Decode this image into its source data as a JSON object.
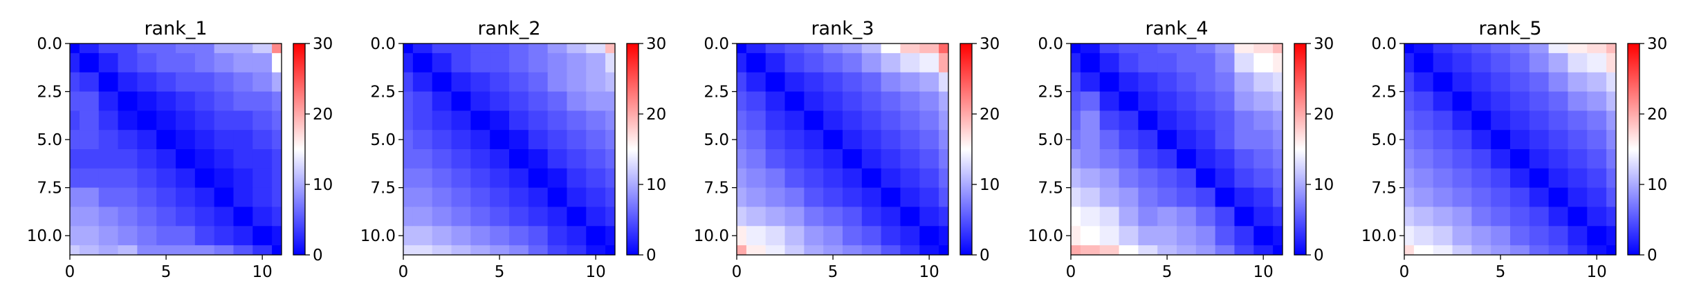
{
  "chart_data": [
    {
      "type": "heatmap",
      "title": "rank_1",
      "xlabel": "",
      "ylabel": "",
      "xlim": [
        0,
        11
      ],
      "ylim": [
        11,
        0
      ],
      "x_ticks": [
        "0",
        "5",
        "10"
      ],
      "y_ticks": [
        "0.0",
        "2.5",
        "5.0",
        "7.5",
        "10.0"
      ],
      "colorbar": {
        "range": [
          0,
          30
        ],
        "ticks": [
          "0",
          "10",
          "20",
          "30"
        ],
        "colormap": "bwr"
      },
      "values": [
        [
          0,
          2,
          4,
          4,
          6,
          6,
          7,
          7,
          10,
          10,
          12,
          22
        ],
        [
          2,
          0,
          2,
          4,
          5,
          6,
          6,
          7,
          8,
          9,
          9,
          15
        ],
        [
          4,
          3,
          0,
          2,
          3,
          4,
          5,
          5,
          6,
          7,
          8,
          10
        ],
        [
          5,
          5,
          2,
          0,
          1,
          2,
          3,
          4,
          5,
          6,
          6,
          7
        ],
        [
          4,
          5,
          3,
          1,
          0,
          1,
          2,
          3,
          4,
          4,
          5,
          6
        ],
        [
          5,
          5,
          4,
          3,
          2,
          0,
          1,
          2,
          3,
          3,
          4,
          5
        ],
        [
          4,
          4,
          4,
          4,
          3,
          2,
          0,
          1,
          2,
          3,
          3,
          4
        ],
        [
          5,
          5,
          5,
          5,
          4,
          3,
          2,
          0,
          1,
          2,
          3,
          4
        ],
        [
          8,
          8,
          6,
          6,
          5,
          4,
          3,
          2,
          0,
          2,
          3,
          4
        ],
        [
          9,
          9,
          8,
          7,
          6,
          5,
          4,
          3,
          2,
          0,
          2,
          3
        ],
        [
          10,
          10,
          9,
          8,
          7,
          6,
          6,
          4,
          3,
          2,
          0,
          1
        ],
        [
          12,
          11,
          10,
          11,
          8,
          8,
          8,
          8,
          7,
          5,
          3,
          0
        ]
      ]
    },
    {
      "type": "heatmap",
      "title": "rank_2",
      "xlabel": "",
      "ylabel": "",
      "xlim": [
        0,
        11
      ],
      "ylim": [
        11,
        0
      ],
      "x_ticks": [
        "0",
        "5",
        "10"
      ],
      "y_ticks": [
        "0.0",
        "2.5",
        "5.0",
        "7.5",
        "10.0"
      ],
      "colorbar": {
        "range": [
          0,
          30
        ],
        "ticks": [
          "0",
          "10",
          "20",
          "30"
        ],
        "colormap": "bwr"
      },
      "values": [
        [
          0,
          2,
          4,
          4,
          5,
          5,
          6,
          7,
          9,
          11,
          13,
          19
        ],
        [
          2,
          0,
          2,
          4,
          5,
          5,
          6,
          7,
          8,
          9,
          10,
          13
        ],
        [
          4,
          2,
          0,
          2,
          3,
          4,
          5,
          6,
          8,
          9,
          10,
          11
        ],
        [
          5,
          4,
          2,
          0,
          2,
          3,
          4,
          5,
          6,
          8,
          9,
          9
        ],
        [
          5,
          4,
          3,
          2,
          0,
          1,
          3,
          4,
          5,
          6,
          7,
          8
        ],
        [
          6,
          5,
          4,
          3,
          2,
          0,
          1,
          3,
          4,
          5,
          6,
          7
        ],
        [
          6,
          6,
          5,
          4,
          3,
          2,
          0,
          1,
          3,
          4,
          5,
          6
        ],
        [
          7,
          7,
          6,
          5,
          4,
          3,
          2,
          0,
          1,
          3,
          4,
          5
        ],
        [
          8,
          8,
          7,
          6,
          5,
          4,
          3,
          2,
          0,
          2,
          3,
          4
        ],
        [
          9,
          9,
          8,
          7,
          6,
          5,
          4,
          3,
          2,
          0,
          2,
          3
        ],
        [
          11,
          11,
          10,
          9,
          8,
          7,
          6,
          5,
          3,
          2,
          0,
          1
        ],
        [
          13,
          13,
          12,
          11,
          10,
          9,
          8,
          6,
          4,
          3,
          1,
          0
        ]
      ]
    },
    {
      "type": "heatmap",
      "title": "rank_3",
      "xlabel": "",
      "ylabel": "",
      "xlim": [
        0,
        11
      ],
      "ylim": [
        11,
        0
      ],
      "x_ticks": [
        "0",
        "5",
        "10"
      ],
      "y_ticks": [
        "0.0",
        "2.5",
        "5.0",
        "7.5",
        "10.0"
      ],
      "colorbar": {
        "range": [
          0,
          30
        ],
        "ticks": [
          "0",
          "10",
          "20",
          "30"
        ],
        "colormap": "bwr"
      },
      "values": [
        [
          0,
          2,
          4,
          5,
          6,
          8,
          9,
          11,
          15,
          18,
          19,
          24
        ],
        [
          2,
          0,
          2,
          4,
          5,
          6,
          7,
          9,
          11,
          13,
          14,
          20
        ],
        [
          4,
          2,
          0,
          2,
          3,
          4,
          5,
          6,
          8,
          9,
          10,
          13
        ],
        [
          5,
          4,
          2,
          0,
          2,
          3,
          4,
          5,
          6,
          7,
          8,
          10
        ],
        [
          6,
          5,
          3,
          2,
          0,
          2,
          3,
          4,
          5,
          6,
          7,
          9
        ],
        [
          7,
          6,
          4,
          3,
          2,
          0,
          2,
          3,
          4,
          5,
          6,
          8
        ],
        [
          8,
          7,
          5,
          4,
          3,
          2,
          0,
          2,
          3,
          4,
          5,
          7
        ],
        [
          9,
          8,
          7,
          5,
          4,
          3,
          2,
          0,
          2,
          3,
          4,
          6
        ],
        [
          10,
          9,
          8,
          7,
          5,
          4,
          3,
          2,
          0,
          2,
          3,
          5
        ],
        [
          12,
          11,
          10,
          9,
          7,
          6,
          5,
          3,
          2,
          0,
          2,
          3
        ],
        [
          16,
          14,
          13,
          11,
          9,
          8,
          6,
          5,
          3,
          2,
          0,
          1
        ],
        [
          20,
          16,
          14,
          12,
          10,
          9,
          8,
          7,
          5,
          3,
          1,
          0
        ]
      ]
    },
    {
      "type": "heatmap",
      "title": "rank_4",
      "xlabel": "",
      "ylabel": "",
      "xlim": [
        0,
        11
      ],
      "ylim": [
        11,
        0
      ],
      "x_ticks": [
        "0",
        "5",
        "10"
      ],
      "y_ticks": [
        "0.0",
        "2.5",
        "5.0",
        "7.5",
        "10.0"
      ],
      "colorbar": {
        "range": [
          0,
          30
        ],
        "ticks": [
          "0",
          "10",
          "20",
          "30"
        ],
        "colormap": "bwr"
      },
      "values": [
        [
          0,
          1,
          4,
          5,
          5,
          6,
          6,
          7,
          9,
          16,
          17,
          19
        ],
        [
          2,
          0,
          2,
          4,
          5,
          5,
          6,
          6,
          8,
          13,
          15,
          16
        ],
        [
          4,
          2,
          0,
          2,
          3,
          4,
          5,
          6,
          7,
          10,
          12,
          13
        ],
        [
          5,
          6,
          2,
          0,
          2,
          3,
          4,
          5,
          6,
          9,
          10,
          11
        ],
        [
          6,
          8,
          4,
          3,
          0,
          2,
          3,
          4,
          5,
          7,
          8,
          9
        ],
        [
          7,
          8,
          6,
          4,
          3,
          0,
          2,
          3,
          5,
          7,
          7,
          8
        ],
        [
          9,
          8,
          7,
          6,
          4,
          3,
          0,
          2,
          3,
          5,
          6,
          7
        ],
        [
          11,
          10,
          9,
          7,
          6,
          5,
          4,
          0,
          2,
          4,
          5,
          6
        ],
        [
          13,
          12,
          10,
          9,
          7,
          6,
          5,
          4,
          0,
          2,
          3,
          5
        ],
        [
          15,
          14,
          13,
          10,
          8,
          9,
          8,
          6,
          4,
          0,
          2,
          3
        ],
        [
          16,
          15,
          14,
          12,
          10,
          10,
          9,
          8,
          5,
          3,
          0,
          1
        ],
        [
          20,
          19,
          18,
          15,
          13,
          11,
          10,
          9,
          7,
          4,
          2,
          0
        ]
      ]
    },
    {
      "type": "heatmap",
      "title": "rank_5",
      "xlabel": "",
      "ylabel": "",
      "xlim": [
        0,
        11
      ],
      "ylim": [
        11,
        0
      ],
      "x_ticks": [
        "0",
        "5",
        "10"
      ],
      "y_ticks": [
        "0.0",
        "2.5",
        "5.0",
        "7.5",
        "10.0"
      ],
      "colorbar": {
        "range": [
          0,
          30
        ],
        "ticks": [
          "0",
          "10",
          "20",
          "30"
        ],
        "colormap": "bwr"
      },
      "values": [
        [
          0,
          1,
          3,
          4,
          5,
          6,
          7,
          9,
          14,
          16,
          17,
          19
        ],
        [
          2,
          0,
          2,
          3,
          4,
          5,
          6,
          8,
          10,
          13,
          14,
          17
        ],
        [
          4,
          2,
          0,
          2,
          3,
          4,
          5,
          6,
          8,
          10,
          11,
          13
        ],
        [
          5,
          4,
          2,
          0,
          2,
          3,
          4,
          5,
          6,
          8,
          9,
          11
        ],
        [
          6,
          5,
          4,
          2,
          0,
          2,
          3,
          4,
          5,
          6,
          7,
          9
        ],
        [
          7,
          6,
          5,
          4,
          2,
          0,
          2,
          3,
          4,
          5,
          6,
          8
        ],
        [
          8,
          7,
          6,
          5,
          4,
          2,
          0,
          2,
          3,
          4,
          5,
          7
        ],
        [
          9,
          8,
          7,
          6,
          5,
          4,
          2,
          0,
          2,
          3,
          4,
          6
        ],
        [
          10,
          9,
          8,
          7,
          6,
          5,
          4,
          2,
          0,
          2,
          3,
          5
        ],
        [
          12,
          11,
          10,
          9,
          7,
          6,
          5,
          4,
          2,
          0,
          2,
          3
        ],
        [
          14,
          13,
          12,
          10,
          9,
          8,
          6,
          5,
          4,
          2,
          0,
          1
        ],
        [
          17,
          15,
          14,
          12,
          10,
          9,
          8,
          6,
          5,
          3,
          1,
          0
        ]
      ]
    }
  ]
}
